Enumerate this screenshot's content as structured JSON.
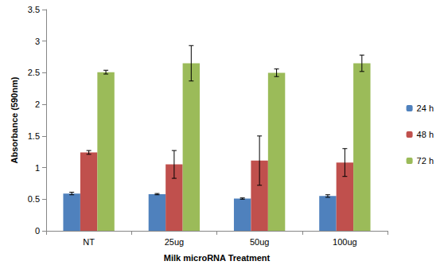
{
  "chart_data": {
    "type": "bar",
    "x_label": "Milk microRNA Treatment",
    "y_label": "Absorbance (590nm)",
    "categories": [
      "NT",
      "25ug",
      "50ug",
      "100ug"
    ],
    "series": [
      {
        "name": "24 h",
        "color": "#4f81bd",
        "values": [
          0.59,
          0.58,
          0.51,
          0.55
        ],
        "error": [
          0.02,
          0.01,
          0.01,
          0.02
        ]
      },
      {
        "name": "48 h",
        "color": "#c0504d",
        "values": [
          1.24,
          1.05,
          1.11,
          1.08
        ],
        "error": [
          0.03,
          0.22,
          0.39,
          0.22
        ]
      },
      {
        "name": "72 h",
        "color": "#9bbb59",
        "values": [
          2.51,
          2.65,
          2.5,
          2.65
        ],
        "error": [
          0.03,
          0.28,
          0.06,
          0.13
        ]
      }
    ],
    "ylim": [
      0,
      3.5
    ],
    "yticks": [
      0,
      0.5,
      1,
      1.5,
      2,
      2.5,
      3,
      3.5
    ],
    "grid": false,
    "legend": "right"
  }
}
